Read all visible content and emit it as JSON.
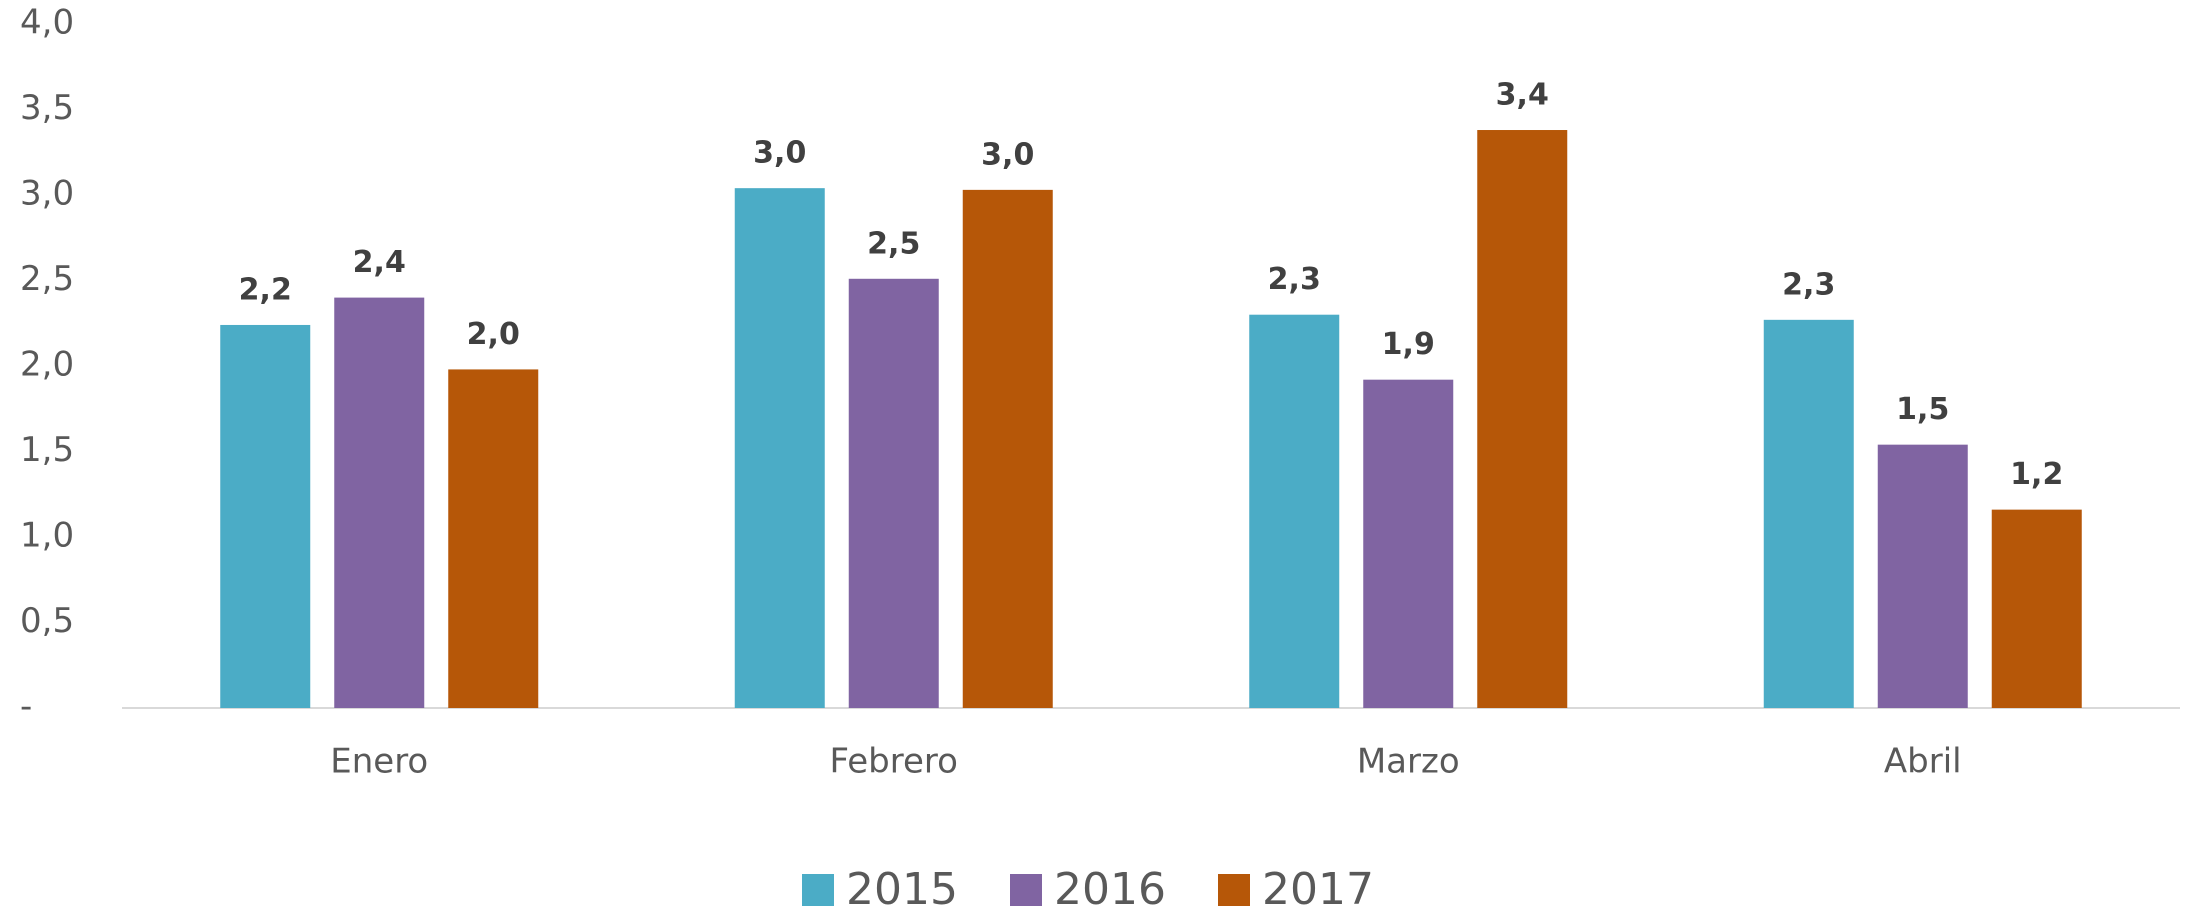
{
  "chart_data": {
    "type": "bar",
    "categories": [
      "Enero",
      "Febrero",
      "Marzo",
      "Abril"
    ],
    "series": [
      {
        "name": "2015",
        "color": "#4bacc6",
        "values": [
          2.24,
          3.04,
          2.3,
          2.27
        ],
        "value_labels": [
          "2,2",
          "3,0",
          "2,3",
          "2,3"
        ]
      },
      {
        "name": "2016",
        "color": "#8064a2",
        "values": [
          2.4,
          2.51,
          1.92,
          1.54
        ],
        "value_labels": [
          "2,4",
          "2,5",
          "1,9",
          "1,5"
        ]
      },
      {
        "name": "2017",
        "color": "#b65708",
        "values": [
          1.98,
          3.03,
          3.38,
          1.16
        ],
        "value_labels": [
          "2,0",
          "3,0",
          "3,4",
          "1,2"
        ]
      }
    ],
    "ylim": [
      0,
      4
    ],
    "yticks": [
      {
        "value": 0,
        "label": "-"
      },
      {
        "value": 0.5,
        "label": "0,5"
      },
      {
        "value": 1,
        "label": "1,0"
      },
      {
        "value": 1.5,
        "label": "1,5"
      },
      {
        "value": 2,
        "label": "2,0"
      },
      {
        "value": 2.5,
        "label": "2,5"
      },
      {
        "value": 3,
        "label": "3,0"
      },
      {
        "value": 3.5,
        "label": "3,5"
      },
      {
        "value": 4,
        "label": "4,0"
      }
    ],
    "legend": "bottom"
  }
}
